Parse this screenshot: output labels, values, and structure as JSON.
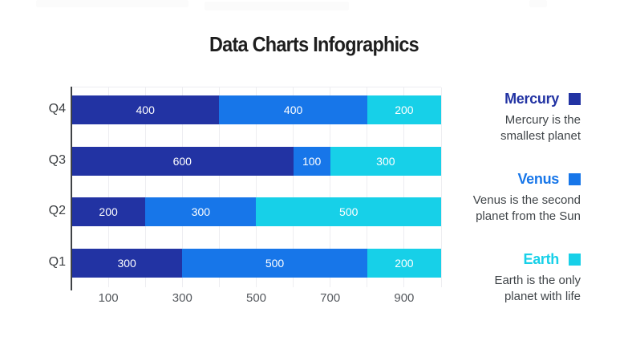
{
  "page": {
    "title": "Data Charts Infographics"
  },
  "chart_data": {
    "type": "bar",
    "orientation": "horizontal",
    "stacked": true,
    "title": "Data Charts Infographics",
    "categories": [
      "Q4",
      "Q3",
      "Q2",
      "Q1"
    ],
    "series": [
      {
        "name": "Mercury",
        "color": "#2233A3",
        "values": [
          400,
          600,
          200,
          300
        ]
      },
      {
        "name": "Venus",
        "color": "#1776E9",
        "values": [
          400,
          100,
          300,
          500
        ]
      },
      {
        "name": "Earth",
        "color": "#17D0E8",
        "values": [
          200,
          300,
          500,
          200
        ]
      }
    ],
    "xlim": [
      0,
      1000
    ],
    "x_ticks": [
      100,
      300,
      500,
      700,
      900
    ],
    "gridline_step": 100,
    "grid": true,
    "value_labels_shown": true,
    "value_label_color": "#ffffff",
    "legend_position": "right"
  },
  "legend": {
    "items": [
      {
        "name": "Mercury",
        "color": "#2233A3",
        "description": "Mercury is the\nsmallest planet"
      },
      {
        "name": "Venus",
        "color": "#1776E9",
        "description": "Venus is the second\nplanet from the Sun"
      },
      {
        "name": "Earth",
        "color": "#17D0E8",
        "description": "Earth is the only\nplanet with life"
      }
    ]
  }
}
